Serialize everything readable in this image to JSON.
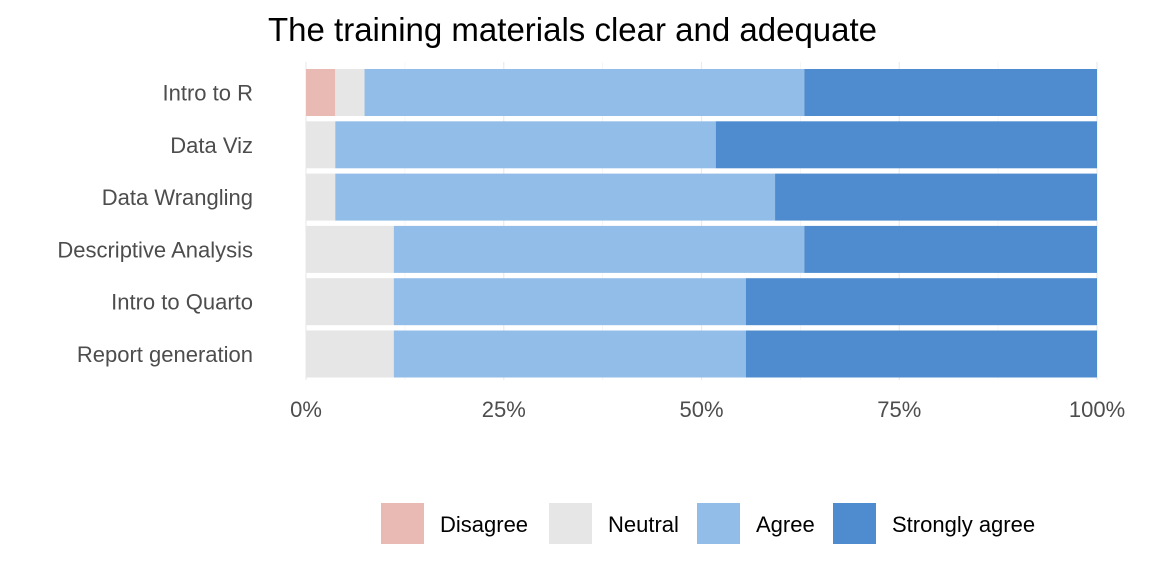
{
  "chart_data": {
    "type": "bar",
    "orientation": "horizontal",
    "stacked": true,
    "normalized": true,
    "title": "The training materials clear and adequate",
    "xlabel": "",
    "ylabel": "",
    "xlim": [
      0,
      100
    ],
    "x_ticks": [
      "0%",
      "25%",
      "50%",
      "75%",
      "100%"
    ],
    "x_tick_values": [
      0,
      25,
      50,
      75,
      100
    ],
    "grid": true,
    "legend_position": "bottom",
    "categories": [
      "Intro to R",
      "Data Viz",
      "Data Wrangling",
      "Descriptive Analysis",
      "Intro to Quarto",
      "Report generation"
    ],
    "series": [
      {
        "name": "Disagree",
        "color": "#e8bab3",
        "values": [
          3.7,
          0,
          0,
          0,
          0,
          0
        ]
      },
      {
        "name": "Neutral",
        "color": "#e6e6e6",
        "values": [
          3.7,
          3.7,
          3.7,
          11.1,
          11.1,
          11.1
        ]
      },
      {
        "name": "Agree",
        "color": "#93bde9",
        "values": [
          55.6,
          48.1,
          55.6,
          51.9,
          44.5,
          44.5
        ]
      },
      {
        "name": "Strongly agree",
        "color": "#4e8bcf",
        "values": [
          37.0,
          48.2,
          40.7,
          37.0,
          44.4,
          44.4
        ]
      }
    ]
  }
}
